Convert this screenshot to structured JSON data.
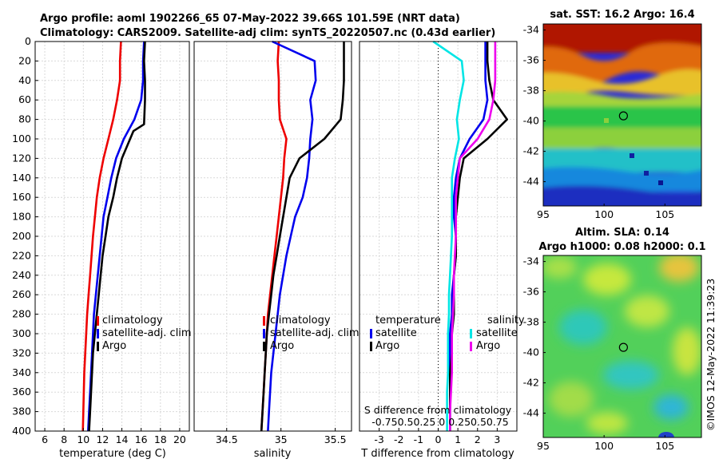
{
  "header": {
    "line1": "Argo profile: aoml 1902266_65 07-May-2022 39.66S 101.59E (NRT data)",
    "line2": "Climatology: CARS2009. Satellite-adj clim: synTS_20220507.nc (0.43d earlier)",
    "sst_title": "sat. SST: 16.2 Argo: 16.4",
    "sla_title1": "Altim. SLA: 0.14",
    "sla_title2": "Argo h1000: 0.08 h2000: 0.1",
    "credit": "©IMOS 12-May-2022 11:39:23"
  },
  "colors": {
    "clim": "#ee0000",
    "sat": "#0000ee",
    "argo": "#000000",
    "sat_s": "#00e5e5",
    "argo_s": "#ee00ee"
  },
  "chart_data": [
    {
      "type": "line",
      "title": "",
      "xlabel": "temperature (deg C)",
      "ylabel": "",
      "xlim": [
        5,
        21
      ],
      "ylim": [
        400,
        0
      ],
      "xticks": [
        6,
        8,
        10,
        12,
        14,
        16,
        18,
        20
      ],
      "yticks": [
        0,
        20,
        40,
        60,
        80,
        100,
        120,
        140,
        160,
        180,
        200,
        220,
        240,
        260,
        280,
        300,
        320,
        340,
        360,
        380,
        400
      ],
      "legend": [
        "climatology",
        "satellite-adj. clim",
        "Argo"
      ],
      "series": [
        {
          "name": "climatology",
          "color": "#ee0000",
          "x": [
            13.9,
            13.8,
            13.8,
            13.5,
            13.1,
            12.6,
            12.1,
            11.7,
            11.4,
            11.2,
            11.0,
            10.85,
            10.7,
            10.55,
            10.4,
            10.3,
            10.2,
            10.1,
            10.05,
            10.0,
            9.95
          ],
          "y": [
            0,
            20,
            40,
            60,
            80,
            100,
            120,
            140,
            160,
            180,
            200,
            220,
            240,
            260,
            280,
            300,
            320,
            340,
            360,
            380,
            400
          ]
        },
        {
          "name": "satellite-adj. clim",
          "color": "#0000ee",
          "x": [
            16.3,
            16.2,
            16.2,
            16.0,
            15.3,
            14.2,
            13.4,
            12.9,
            12.5,
            12.1,
            11.9,
            11.7,
            11.5,
            11.3,
            11.1,
            11.0,
            10.9,
            10.8,
            10.7,
            10.6,
            10.5
          ],
          "y": [
            0,
            20,
            40,
            60,
            80,
            100,
            120,
            140,
            160,
            180,
            200,
            220,
            240,
            260,
            280,
            300,
            320,
            340,
            360,
            380,
            400
          ]
        },
        {
          "name": "Argo",
          "color": "#000000",
          "x": [
            16.4,
            16.3,
            16.4,
            16.4,
            16.3,
            15.2,
            14.0,
            13.5,
            13.1,
            12.6,
            12.3,
            12.0,
            11.8,
            11.6,
            11.4,
            11.2,
            11.0,
            10.9,
            10.8,
            10.7,
            10.6
          ],
          "y": [
            0,
            20,
            40,
            60,
            85,
            92,
            120,
            140,
            160,
            180,
            200,
            220,
            240,
            260,
            280,
            300,
            320,
            340,
            360,
            380,
            400
          ]
        }
      ]
    },
    {
      "type": "line",
      "title": "",
      "xlabel": "salinity",
      "ylabel": "",
      "xlim": [
        34.2,
        35.65
      ],
      "ylim": [
        400,
        0
      ],
      "xticks": [
        34.5,
        35,
        35.5
      ],
      "legend": [
        "climatology",
        "satellite-adj. clim",
        "Argo"
      ],
      "series": [
        {
          "name": "climatology",
          "color": "#ee0000",
          "x": [
            34.98,
            34.97,
            34.98,
            34.98,
            34.99,
            35.05,
            35.03,
            35.02,
            35.0,
            34.98,
            34.96,
            34.94,
            34.92,
            34.9,
            34.88,
            34.87,
            34.86,
            34.85,
            34.84,
            34.83,
            34.82
          ],
          "y": [
            0,
            20,
            40,
            60,
            80,
            100,
            120,
            140,
            160,
            180,
            200,
            220,
            240,
            260,
            280,
            300,
            320,
            340,
            360,
            380,
            400
          ]
        },
        {
          "name": "satellite-adj. clim",
          "color": "#0000ee",
          "x": [
            34.92,
            35.31,
            35.32,
            35.27,
            35.29,
            35.27,
            35.26,
            35.24,
            35.2,
            35.13,
            35.09,
            35.05,
            35.02,
            34.99,
            34.97,
            34.95,
            34.93,
            34.91,
            34.9,
            34.89,
            34.88
          ],
          "y": [
            0,
            20,
            40,
            60,
            80,
            100,
            120,
            140,
            160,
            180,
            200,
            220,
            240,
            260,
            280,
            300,
            320,
            340,
            360,
            380,
            400
          ]
        },
        {
          "name": "Argo",
          "color": "#000000",
          "x": [
            35.58,
            35.58,
            35.58,
            35.57,
            35.55,
            35.4,
            35.17,
            35.08,
            35.05,
            35.02,
            34.99,
            34.96,
            34.93,
            34.91,
            34.89,
            34.87,
            34.86,
            34.85,
            34.84,
            34.83,
            34.82
          ],
          "y": [
            0,
            20,
            40,
            60,
            80,
            100,
            120,
            140,
            160,
            180,
            200,
            220,
            240,
            260,
            280,
            300,
            320,
            340,
            360,
            380,
            400
          ]
        }
      ]
    },
    {
      "type": "line",
      "title": "",
      "xlabel": "T difference from climatology",
      "xlabel2": "S difference from climatology",
      "xlim": [
        -4,
        4
      ],
      "ylim": [
        400,
        0
      ],
      "xticks": [
        -3,
        -2,
        -1,
        0,
        1,
        2,
        3
      ],
      "xticks2": [
        "-0.75",
        "-0.5",
        "-0.25",
        "0",
        "0.25",
        "0.5",
        "0.75"
      ],
      "xtick_row2": "-0.750.50.25 0 0.250.50.75",
      "legend_titles": [
        "temperature",
        "salinity"
      ],
      "legend": [
        "satellite",
        "Argo",
        "satellite",
        "Argo"
      ],
      "series": [
        {
          "name": "T satellite",
          "color": "#0000ee",
          "x": [
            2.4,
            2.4,
            2.4,
            2.5,
            2.3,
            1.6,
            1.1,
            0.9,
            0.8,
            0.8,
            0.9,
            0.9,
            0.8,
            0.7,
            0.7,
            0.6,
            0.6,
            0.6,
            0.6,
            0.6,
            0.6
          ],
          "y": [
            0,
            20,
            40,
            60,
            80,
            100,
            120,
            140,
            160,
            180,
            200,
            220,
            240,
            260,
            280,
            300,
            320,
            340,
            360,
            380,
            400
          ]
        },
        {
          "name": "T Argo",
          "color": "#000000",
          "x": [
            2.5,
            2.5,
            2.6,
            2.8,
            3.5,
            2.5,
            1.3,
            1.1,
            1.0,
            0.9,
            0.9,
            0.9,
            0.8,
            0.8,
            0.8,
            0.7,
            0.7,
            0.6,
            0.6,
            0.6,
            0.6
          ],
          "y": [
            0,
            20,
            40,
            60,
            80,
            100,
            120,
            140,
            160,
            180,
            200,
            220,
            240,
            260,
            280,
            300,
            320,
            340,
            360,
            380,
            400
          ]
        },
        {
          "name": "S satellite",
          "color": "#00e5e5",
          "x": [
            -0.25,
            1.2,
            1.3,
            1.1,
            0.95,
            1.05,
            0.85,
            0.7,
            0.7,
            0.7,
            0.7,
            0.65,
            0.6,
            0.55,
            0.55,
            0.5,
            0.5,
            0.5,
            0.45,
            0.45,
            0.45
          ],
          "y": [
            0,
            20,
            40,
            60,
            80,
            100,
            120,
            140,
            160,
            180,
            200,
            220,
            240,
            260,
            280,
            300,
            320,
            340,
            360,
            380,
            400
          ]
        },
        {
          "name": "S Argo",
          "color": "#ee00ee",
          "x": [
            2.9,
            2.9,
            2.9,
            2.8,
            2.6,
            2.0,
            1.1,
            1.0,
            0.9,
            0.9,
            0.9,
            0.85,
            0.8,
            0.8,
            0.75,
            0.7,
            0.7,
            0.7,
            0.65,
            0.6,
            0.6
          ],
          "y": [
            0,
            20,
            40,
            60,
            80,
            100,
            120,
            140,
            160,
            180,
            200,
            220,
            240,
            260,
            280,
            300,
            320,
            340,
            360,
            380,
            400
          ]
        }
      ]
    },
    {
      "type": "heatmap",
      "title": "sat. SST: 16.2 Argo: 16.4",
      "xlim": [
        95,
        108
      ],
      "ylim": [
        -45.6,
        -33.6
      ],
      "xticks": [
        95,
        100,
        105
      ],
      "yticks": [
        -34,
        -36,
        -38,
        -40,
        -42,
        -44
      ],
      "marker": {
        "lon": 101.59,
        "lat": -39.66
      }
    },
    {
      "type": "heatmap",
      "title": "Altim. SLA: 0.14",
      "xlim": [
        95,
        108
      ],
      "ylim": [
        -45.6,
        -33.6
      ],
      "xticks": [
        95,
        100,
        105
      ],
      "yticks": [
        -34,
        -36,
        -38,
        -40,
        -42,
        -44
      ],
      "marker": {
        "lon": 101.59,
        "lat": -39.66
      }
    }
  ]
}
